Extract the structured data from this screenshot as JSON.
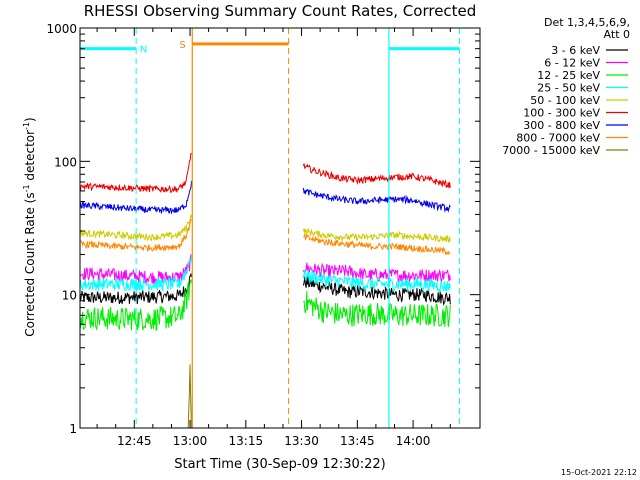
{
  "chart_data": {
    "type": "line",
    "title": "RHESSI Observing Summary Count Rates, Corrected",
    "xlabel": "Start Time (30-Sep-09 12:30:22)",
    "ylabel_parts": [
      "Corrected Count Rate (s",
      "-1",
      " detector",
      "-1",
      ")"
    ],
    "y_scale": "log",
    "ylim": [
      1,
      1000
    ],
    "xlim_minutes_after_1230": [
      0.4,
      108
    ],
    "x_ticks": [
      {
        "label": "12:45",
        "minutes": 15
      },
      {
        "label": "13:00",
        "minutes": 30
      },
      {
        "label": "13:15",
        "minutes": 45
      },
      {
        "label": "13:30",
        "minutes": 60
      },
      {
        "label": "13:45",
        "minutes": 75
      },
      {
        "label": "14:00",
        "minutes": 90
      }
    ],
    "y_ticks": [
      {
        "label": "1",
        "value": 1
      },
      {
        "label": "10",
        "value": 10
      },
      {
        "label": "100",
        "value": 100
      },
      {
        "label": "1000",
        "value": 1000
      }
    ],
    "legend_header": [
      "Det 1,3,4,5,6,9,",
      "Att 0"
    ],
    "legend_position": "right",
    "series": [
      {
        "name": "3 - 6 keV",
        "color": "#000000",
        "segments": [
          {
            "points": [
              [
                0.4,
                9.5
              ],
              [
                10,
                9.5
              ],
              [
                20,
                9.6
              ],
              [
                27,
                9.8
              ],
              [
                29,
                11
              ],
              [
                30.4,
                14
              ]
            ]
          },
          {
            "points": [
              [
                60.5,
                12.5
              ],
              [
                66,
                11.5
              ],
              [
                72,
                10.5
              ],
              [
                78,
                10.5
              ],
              [
                85,
                10
              ],
              [
                93,
                10
              ],
              [
                98,
                9.5
              ],
              [
                100,
                9.5
              ]
            ]
          }
        ]
      },
      {
        "name": "6 - 12 keV",
        "color": "#ff00ff",
        "segments": [
          {
            "points": [
              [
                0.4,
                14.5
              ],
              [
                10,
                14
              ],
              [
                20,
                13.5
              ],
              [
                27,
                13.5
              ],
              [
                29,
                15
              ],
              [
                30.4,
                18
              ]
            ]
          },
          {
            "points": [
              [
                60.5,
                16
              ],
              [
                66,
                15
              ],
              [
                72,
                15
              ],
              [
                78,
                14
              ],
              [
                85,
                14
              ],
              [
                93,
                14
              ],
              [
                100,
                14
              ]
            ]
          }
        ]
      },
      {
        "name": "12 - 25 keV",
        "color": "#00ee00",
        "segments": [
          {
            "points": [
              [
                0.4,
                6.8
              ],
              [
                10,
                6.6
              ],
              [
                20,
                6.6
              ],
              [
                27,
                6.8
              ],
              [
                29,
                9
              ],
              [
                30.4,
                13
              ]
            ]
          },
          {
            "points": [
              [
                60.5,
                9
              ],
              [
                66,
                7.5
              ],
              [
                72,
                7
              ],
              [
                78,
                7.2
              ],
              [
                85,
                7
              ],
              [
                93,
                7
              ],
              [
                100,
                7
              ]
            ]
          }
        ]
      },
      {
        "name": "25 - 50 keV",
        "color": "#00ffff",
        "segments": [
          {
            "points": [
              [
                0.4,
                12
              ],
              [
                10,
                12
              ],
              [
                20,
                12
              ],
              [
                27,
                12
              ],
              [
                29,
                15
              ],
              [
                30.4,
                20
              ]
            ]
          },
          {
            "points": [
              [
                60.5,
                14
              ],
              [
                66,
                13
              ],
              [
                72,
                12.5
              ],
              [
                78,
                12
              ],
              [
                85,
                12
              ],
              [
                93,
                12
              ],
              [
                100,
                11.5
              ]
            ]
          }
        ]
      },
      {
        "name": "50 - 100 keV",
        "color": "#cccc00",
        "segments": [
          {
            "points": [
              [
                0.4,
                29
              ],
              [
                10,
                28
              ],
              [
                20,
                27
              ],
              [
                27,
                28
              ],
              [
                29,
                32
              ],
              [
                30.4,
                40
              ]
            ]
          },
          {
            "points": [
              [
                60.5,
                30
              ],
              [
                66,
                28
              ],
              [
                72,
                27
              ],
              [
                78,
                27
              ],
              [
                85,
                28
              ],
              [
                93,
                27
              ],
              [
                100,
                26
              ]
            ]
          }
        ]
      },
      {
        "name": "100 - 300 keV",
        "color": "#ee0000",
        "segments": [
          {
            "points": [
              [
                0.4,
                65
              ],
              [
                10,
                64
              ],
              [
                20,
                62
              ],
              [
                27,
                62
              ],
              [
                29,
                70
              ],
              [
                30.4,
                120
              ]
            ]
          },
          {
            "points": [
              [
                60.5,
                92
              ],
              [
                63,
                86
              ],
              [
                70,
                75
              ],
              [
                75,
                72
              ],
              [
                80,
                74
              ],
              [
                85,
                76
              ],
              [
                90,
                77
              ],
              [
                95,
                72
              ],
              [
                100,
                66
              ]
            ]
          }
        ]
      },
      {
        "name": "300 - 800 keV",
        "color": "#0000ee",
        "segments": [
          {
            "points": [
              [
                0.4,
                47
              ],
              [
                10,
                45
              ],
              [
                20,
                43
              ],
              [
                27,
                43
              ],
              [
                29,
                48
              ],
              [
                30.4,
                70
              ]
            ]
          },
          {
            "points": [
              [
                60.5,
                60
              ],
              [
                63,
                57
              ],
              [
                70,
                52
              ],
              [
                75,
                50
              ],
              [
                80,
                51
              ],
              [
                85,
                52
              ],
              [
                90,
                51
              ],
              [
                95,
                47
              ],
              [
                100,
                44
              ]
            ]
          }
        ]
      },
      {
        "name": "800 - 7000 keV",
        "color": "#ff8800",
        "segments": [
          {
            "points": [
              [
                0.4,
                24
              ],
              [
                10,
                23
              ],
              [
                20,
                22.5
              ],
              [
                27,
                23
              ],
              [
                29,
                28
              ],
              [
                30.4,
                36
              ]
            ]
          },
          {
            "points": [
              [
                60.5,
                27
              ],
              [
                66,
                25
              ],
              [
                72,
                24
              ],
              [
                78,
                23
              ],
              [
                85,
                23
              ],
              [
                93,
                22
              ],
              [
                100,
                21
              ]
            ]
          }
        ]
      },
      {
        "name": "7000 - 15000 keV",
        "color": "#808000",
        "segments": [
          {
            "points": [
              [
                29.5,
                1
              ],
              [
                29.8,
                1.8
              ],
              [
                30,
                3
              ],
              [
                30.2,
                1.5
              ],
              [
                30.4,
                1
              ]
            ]
          }
        ]
      }
    ],
    "annotations": [
      {
        "label": "N",
        "color": "#00ffff",
        "flag_minutes": [
          0.4,
          15.5
        ],
        "flag_value": 700,
        "dashed_lines_minutes": [
          15.5
        ],
        "label_minutes": 17.5
      },
      {
        "label": "S",
        "color": "#ff8800",
        "flag_minutes": [
          30.6,
          56.5
        ],
        "flag_value": 760,
        "dashed_lines_minutes": [
          56.5
        ],
        "solid_lines_minutes": [
          30.6
        ],
        "label_minutes": 28
      },
      {
        "label": "",
        "color": "#00ffff",
        "flag_minutes": [
          83.5,
          102.5
        ],
        "flag_value": 700,
        "dashed_lines_minutes": [
          102.5
        ],
        "solid_lines_minutes": [
          83.5
        ]
      }
    ]
  },
  "footer": {
    "timestamp": "15-Oct-2021 22:12"
  }
}
